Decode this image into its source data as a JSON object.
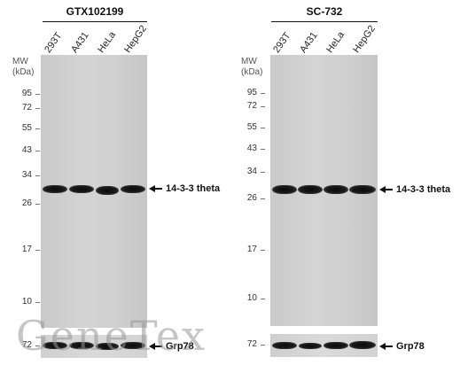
{
  "panels": [
    {
      "title": "GTX102199",
      "lanes": [
        "293T",
        "A431",
        "HeLa",
        "HepG2"
      ],
      "mw_header": [
        "MW",
        "(kDa)"
      ],
      "markers": [
        "95",
        "72",
        "55",
        "43",
        "34",
        "26",
        "17",
        "10"
      ],
      "target_label": "14-3-3 theta",
      "control_marker": "72",
      "control_label": "Grp78"
    },
    {
      "title": "SC-732",
      "lanes": [
        "293T",
        "A431",
        "HeLa",
        "HepG2"
      ],
      "mw_header": [
        "MW",
        "(kDa)"
      ],
      "markers": [
        "95",
        "72",
        "55",
        "43",
        "34",
        "26",
        "17",
        "10"
      ],
      "target_label": "14-3-3 theta",
      "control_marker": "72",
      "control_label": "Grp78"
    }
  ],
  "watermark": "GeneTex",
  "colors": {
    "band": "#111111",
    "membrane": "#d2d2d2"
  }
}
